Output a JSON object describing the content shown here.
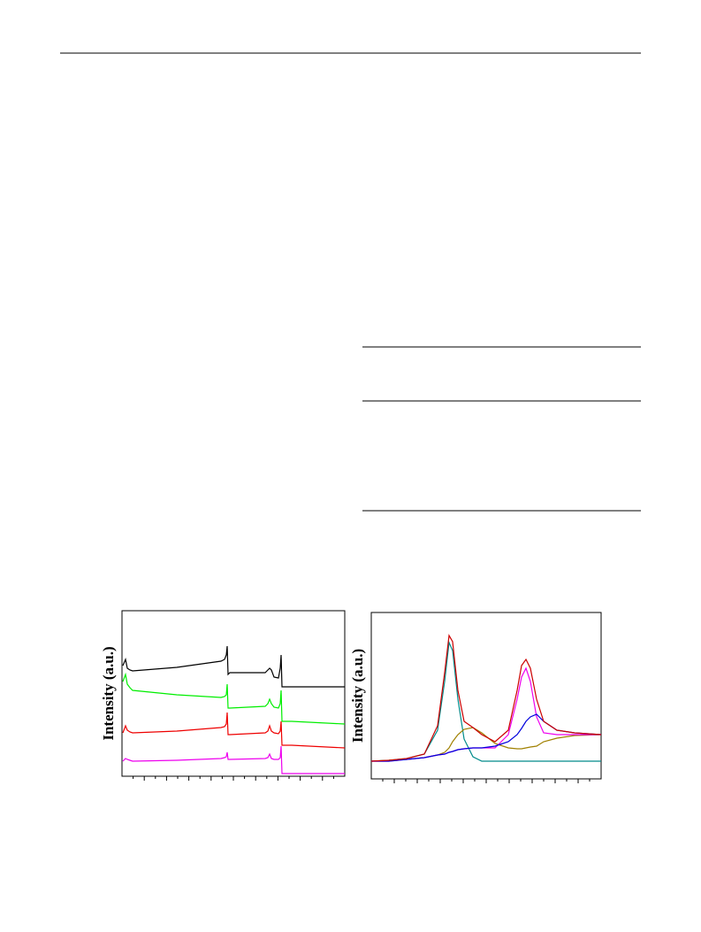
{
  "chart_data": [
    {
      "type": "line",
      "ylabel": "Intensity (a.u.)",
      "x": [
        1,
        4,
        6,
        9,
        12,
        62,
        112,
        116,
        118,
        119,
        120,
        122,
        162,
        165,
        167,
        169,
        172,
        177,
        179,
        180,
        181,
        183,
        192,
        252
      ],
      "xlim": [
        0,
        252
      ],
      "ylim": [
        0,
        187
      ],
      "series": [
        {
          "color": "#000000",
          "values": [
            125,
            132,
            122,
            120,
            119,
            123,
            130,
            132,
            137,
            147,
            115,
            117,
            117,
            120,
            122,
            120,
            112,
            111,
            122,
            137,
            101,
            101,
            101,
            101
          ]
        },
        {
          "color": "#00ee00",
          "values": [
            107,
            115,
            104,
            100,
            97,
            92,
            89,
            90,
            92,
            104,
            77,
            77,
            79,
            82,
            87,
            82,
            78,
            77,
            82,
            97,
            62,
            62,
            62,
            59
          ]
        },
        {
          "color": "#ee0000",
          "values": [
            49,
            57,
            52,
            50,
            49,
            51,
            55,
            56,
            59,
            72,
            47,
            47,
            49,
            51,
            57,
            51,
            49,
            48,
            51,
            62,
            35,
            35,
            35,
            32
          ]
        },
        {
          "color": "#ee00ee",
          "values": [
            17,
            20,
            19,
            18,
            17,
            18,
            20,
            21,
            22,
            27,
            19,
            19,
            20,
            21,
            25,
            20,
            19,
            19,
            21,
            34,
            3,
            3,
            3,
            3
          ]
        }
      ]
    },
    {
      "type": "line",
      "ylabel": "Intensity (a.u.)",
      "x": [
        0,
        20,
        40,
        60,
        75,
        83,
        88,
        92,
        98,
        105,
        115,
        125,
        140,
        155,
        165,
        170,
        175,
        180,
        187,
        195,
        210,
        230,
        260
      ],
      "xlim": [
        0,
        260
      ],
      "ylim": [
        0,
        188
      ],
      "series": [
        {
          "color": "#008b8b",
          "values": [
            20,
            21,
            23,
            28,
            55,
            110,
            154,
            145,
            90,
            45,
            25,
            20,
            20,
            20,
            20,
            20,
            20,
            20,
            20,
            20,
            20,
            20,
            20
          ]
        },
        {
          "color": "#a08000",
          "values": [
            20,
            21,
            22,
            24,
            27,
            30,
            35,
            42,
            50,
            56,
            58,
            52,
            40,
            35,
            34,
            34,
            35,
            36,
            37,
            42,
            46,
            49,
            50
          ]
        },
        {
          "color": "#ee00ee",
          "values": [
            20,
            20,
            22,
            24,
            27,
            28,
            30,
            31,
            33,
            34,
            35,
            35,
            35,
            50,
            90,
            115,
            125,
            110,
            70,
            52,
            50,
            50,
            50
          ]
        },
        {
          "color": "#0000dd",
          "values": [
            20,
            20,
            22,
            24,
            27,
            28,
            30,
            31,
            33,
            34,
            35,
            35,
            37,
            42,
            50,
            57,
            65,
            70,
            73,
            65,
            55,
            52,
            50
          ]
        },
        {
          "color": "#cc0000",
          "values": [
            20,
            21,
            23,
            28,
            60,
            120,
            162,
            155,
            100,
            65,
            58,
            50,
            42,
            55,
            100,
            128,
            135,
            125,
            90,
            65,
            55,
            52,
            50
          ]
        }
      ]
    }
  ]
}
